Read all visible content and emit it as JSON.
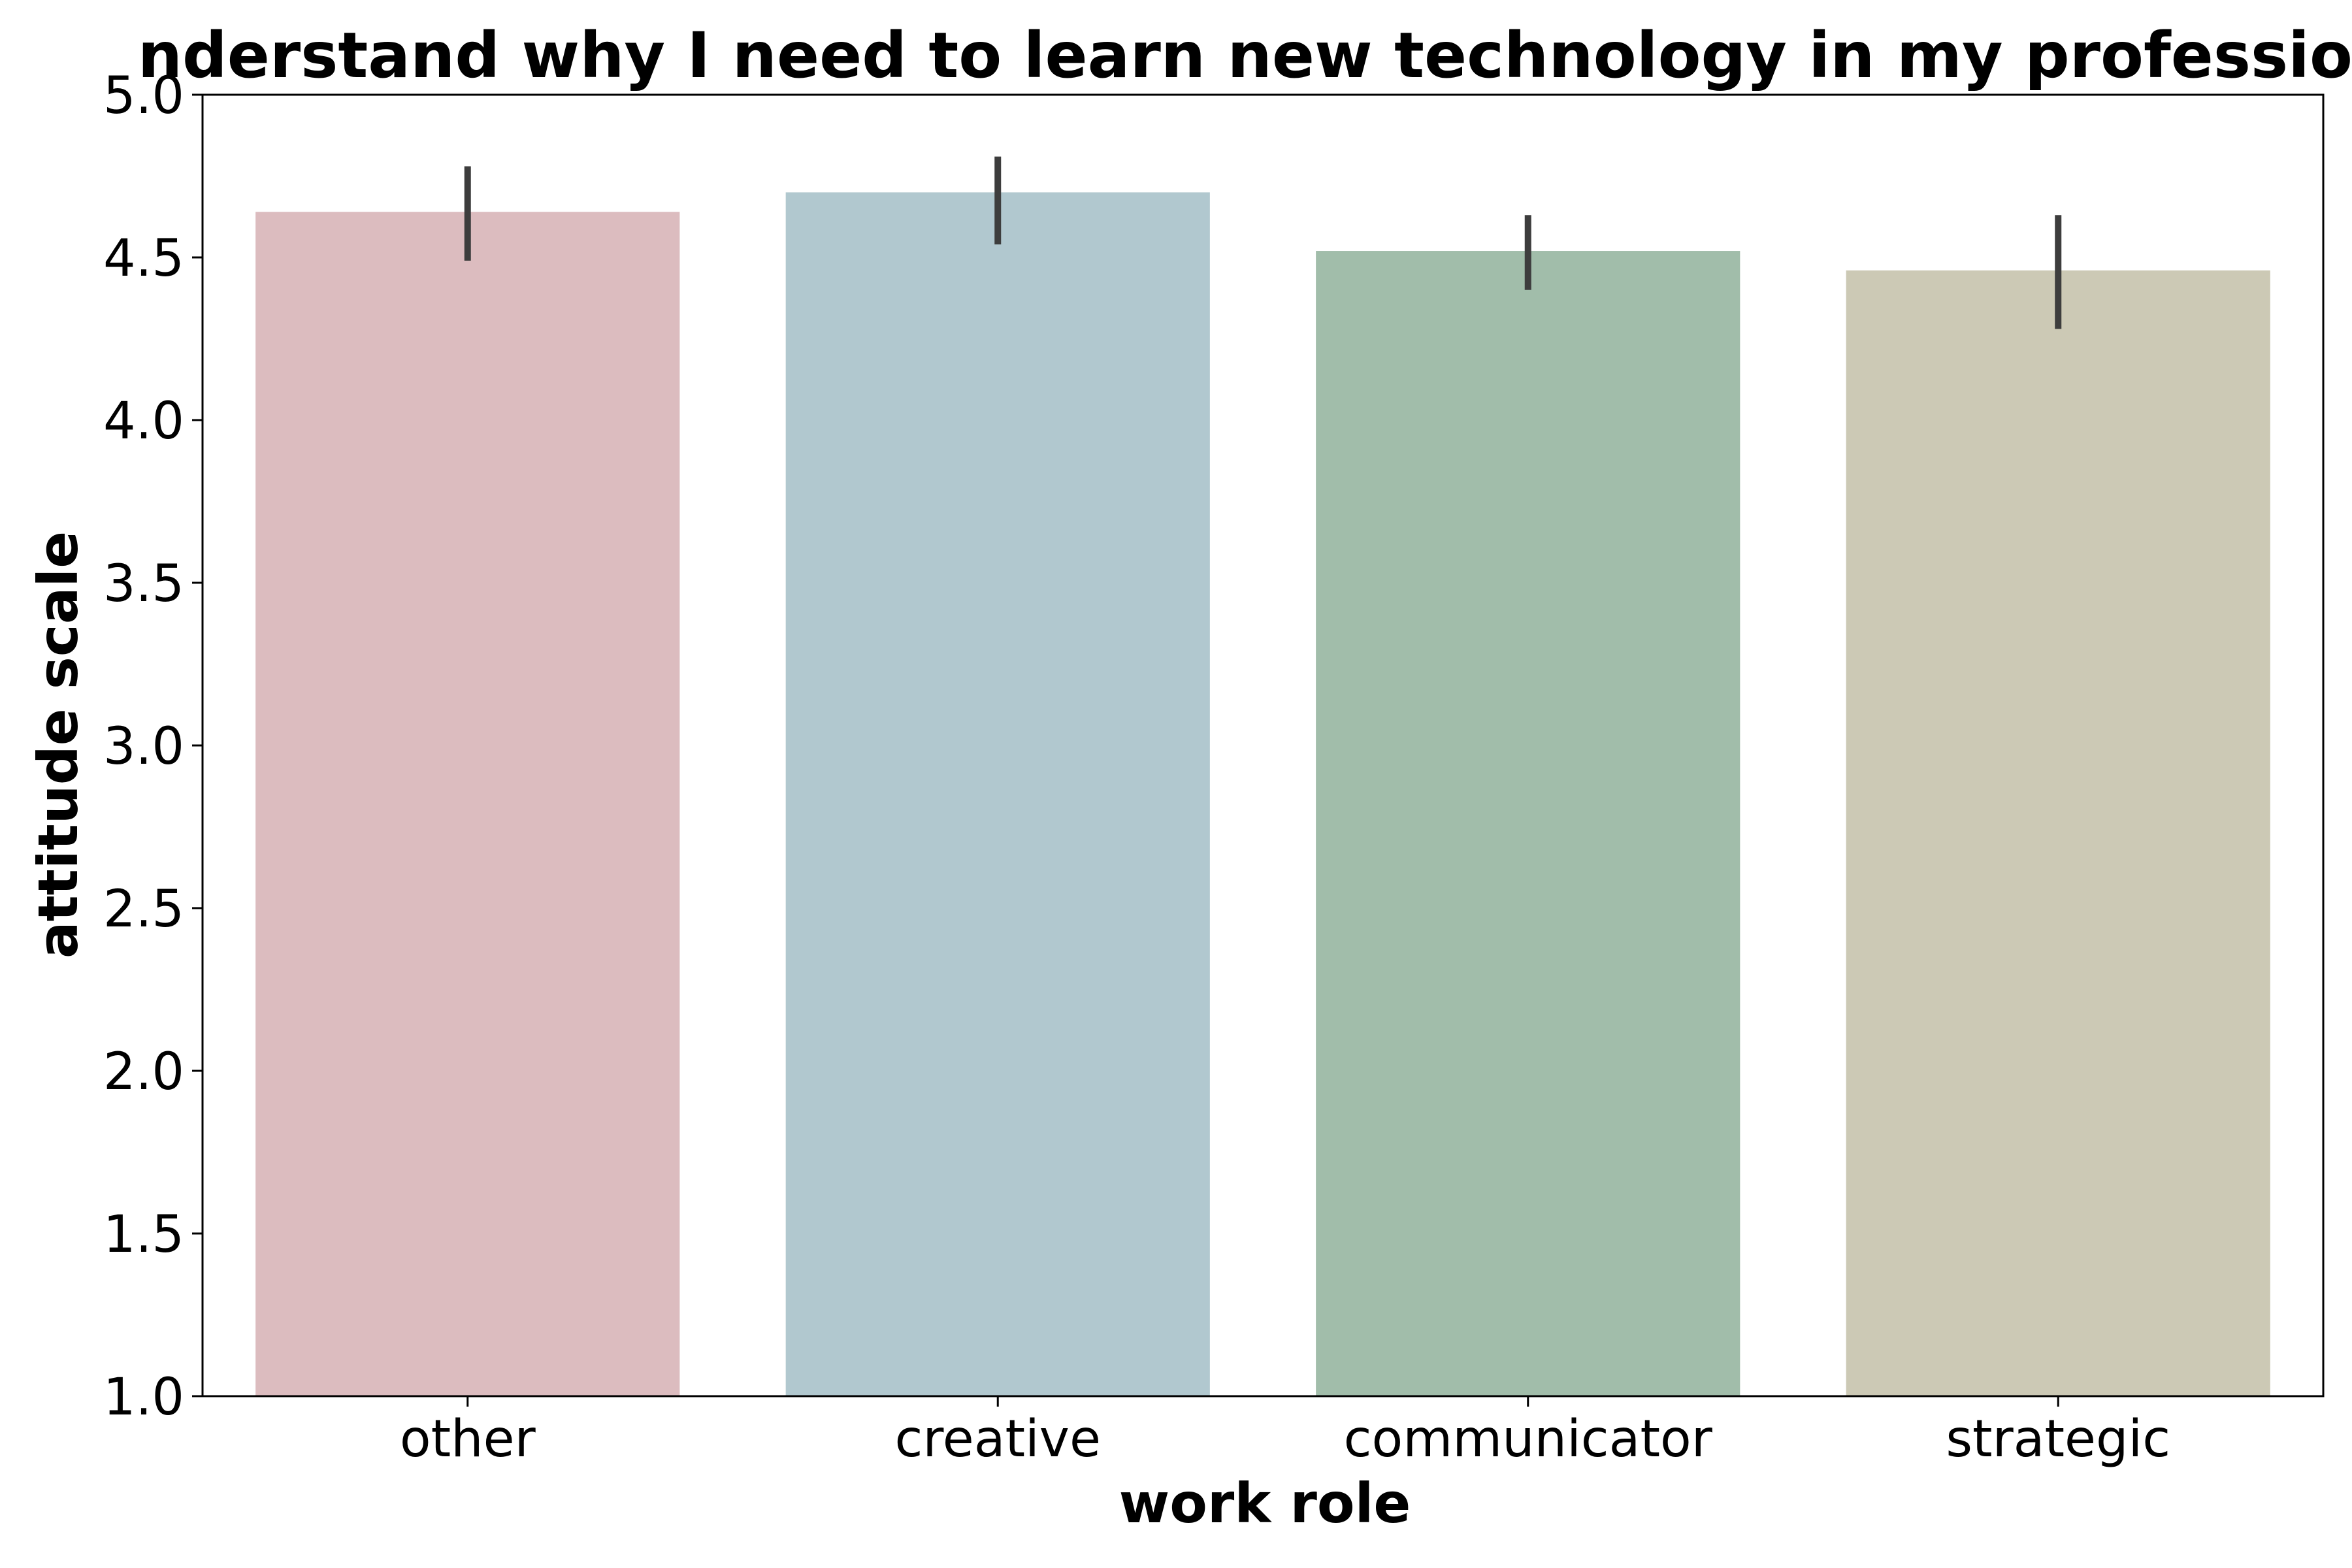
{
  "chart_data": {
    "type": "bar",
    "title": "nderstand why I need to learn new technology in my profession",
    "xlabel": "work role",
    "ylabel": "attitude scale",
    "categories": [
      "other",
      "creative",
      "communicator",
      "strategic"
    ],
    "values": [
      4.64,
      4.7,
      4.52,
      4.46
    ],
    "error_low": [
      4.49,
      4.54,
      4.4,
      4.28
    ],
    "error_high": [
      4.78,
      4.81,
      4.63,
      4.63
    ],
    "colors": [
      "#dcbcbf",
      "#b1c8cf",
      "#a1bdaa",
      "#ccc9b5"
    ],
    "ylim": [
      1.0,
      5.0
    ],
    "yticks": [
      "1.0",
      "1.5",
      "2.0",
      "2.5",
      "3.0",
      "3.5",
      "4.0",
      "4.5",
      "5.0"
    ],
    "grid": false,
    "legend": "none"
  }
}
